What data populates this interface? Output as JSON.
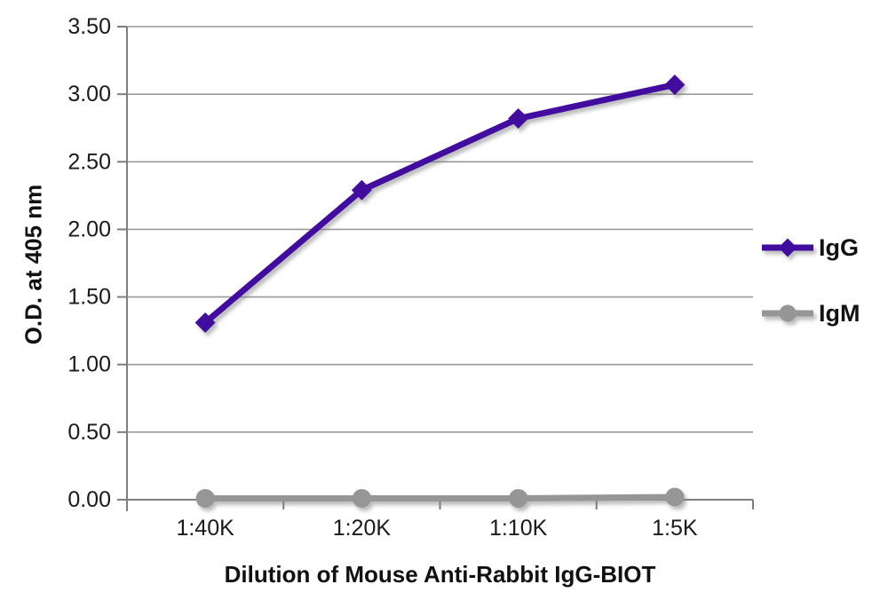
{
  "figure": {
    "background": "#ffffff"
  },
  "chart_data": {
    "type": "line",
    "categories": [
      "1:40K",
      "1:20K",
      "1:10K",
      "1:5K"
    ],
    "series": [
      {
        "name": "IgG",
        "values": [
          1.31,
          2.29,
          2.82,
          3.07
        ],
        "color": "#43109E",
        "marker": "diamond"
      },
      {
        "name": "IgM",
        "values": [
          0.01,
          0.01,
          0.01,
          0.02
        ],
        "color": "#969696",
        "marker": "circle"
      }
    ],
    "title": "",
    "xlabel": "Dilution of Mouse Anti-Rabbit IgG-BIOT",
    "ylabel": "O.D. at 405 nm",
    "ylim": [
      0,
      3.5
    ],
    "ytick_step": 0.5,
    "ytick_decimals": 2,
    "grid": true,
    "legend_position": "right",
    "colors": {
      "axis": "#7f7f7f",
      "grid": "#9a9a9a",
      "text": "#1a1a1a"
    }
  }
}
